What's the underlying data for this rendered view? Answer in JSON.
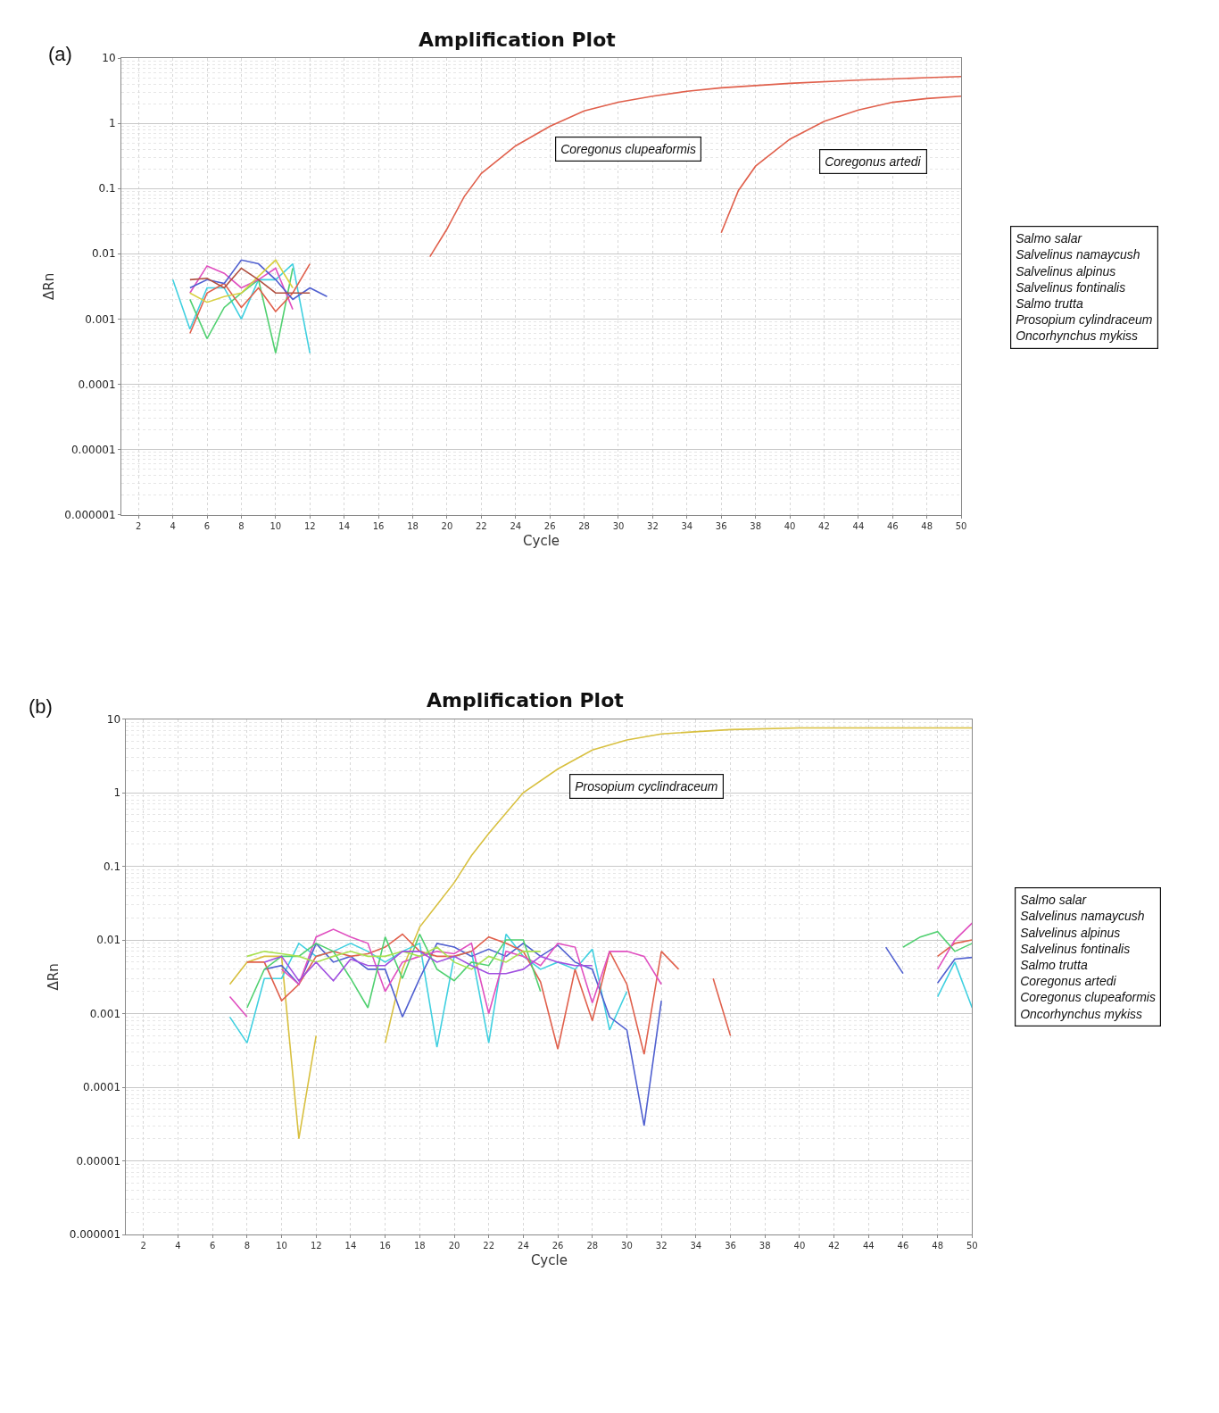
{
  "chart_data": [
    {
      "type": "line",
      "title": "Amplification Plot",
      "xlabel": "Cycle",
      "ylabel": "ΔRn",
      "log": "y",
      "grid": true,
      "marker": "none",
      "line_style": "solid",
      "xlim": [
        1,
        50
      ],
      "xticks": [
        2,
        4,
        6,
        8,
        10,
        12,
        14,
        16,
        18,
        20,
        22,
        24,
        26,
        28,
        30,
        32,
        34,
        36,
        38,
        40,
        42,
        44,
        46,
        48,
        50
      ],
      "ylim": [
        1e-06,
        10
      ],
      "yticks": [
        {
          "value": 1e-06,
          "label": "0.000001"
        },
        {
          "value": 1e-05,
          "label": "0.00001"
        },
        {
          "value": 0.0001,
          "label": "0.0001"
        },
        {
          "value": 0.001,
          "label": "0.001"
        },
        {
          "value": 0.01,
          "label": "0.01"
        },
        {
          "value": 0.1,
          "label": "0.1"
        },
        1,
        10
      ],
      "annotations": [
        "(a)",
        "Coregonus clupeaformis",
        "Coregonus artedi",
        "Salmo salar\nSalvelinus namaycush\nSalvelinus alpinus\nSalvelinus fontinalis\nSalmo trutta\nProsopium cylindraceum\nOncorhynchus mykiss"
      ],
      "series": [
        {
          "color": "#e0604c",
          "x": [
            19,
            20,
            21,
            22,
            24,
            26,
            28,
            30,
            32,
            34,
            36,
            40,
            44,
            48,
            50
          ],
          "values": [
            0.009,
            0.024,
            0.075,
            0.17,
            0.45,
            0.9,
            1.55,
            2.1,
            2.6,
            3.1,
            3.5,
            4.1,
            4.6,
            5.0,
            5.2
          ]
        },
        {
          "color": "#e0604c",
          "x": [
            36,
            37,
            38,
            40,
            42,
            44,
            46,
            48,
            50
          ],
          "values": [
            0.021,
            0.093,
            0.22,
            0.57,
            1.07,
            1.6,
            2.1,
            2.4,
            2.6
          ]
        },
        {
          "color": "#40d0e0",
          "x": [
            4,
            5,
            6,
            7,
            8,
            9,
            10,
            11,
            12
          ],
          "values": [
            0.004,
            0.0007,
            0.003,
            0.003,
            0.001,
            0.004,
            0.004,
            0.007,
            0.0003
          ]
        },
        {
          "color": "#50d070",
          "x": [
            5,
            6,
            7,
            8,
            9,
            10,
            11
          ],
          "values": [
            0.002,
            0.0005,
            0.0015,
            0.0025,
            0.004,
            0.0003,
            0.006
          ]
        },
        {
          "color": "#e050c0",
          "x": [
            5,
            6,
            7,
            8,
            9,
            10,
            11
          ],
          "values": [
            0.0025,
            0.0065,
            0.005,
            0.003,
            0.004,
            0.006,
            0.0014
          ]
        },
        {
          "color": "#e0604c",
          "x": [
            5,
            6,
            7,
            8,
            9,
            10,
            11,
            12
          ],
          "values": [
            0.0006,
            0.0025,
            0.0035,
            0.0015,
            0.003,
            0.0013,
            0.0025,
            0.007
          ]
        },
        {
          "color": "#5060d0",
          "x": [
            5,
            6,
            7,
            8,
            9,
            10,
            11,
            12,
            13
          ],
          "values": [
            0.003,
            0.004,
            0.0035,
            0.008,
            0.007,
            0.004,
            0.002,
            0.003,
            0.0022
          ]
        },
        {
          "color": "#d8d040",
          "x": [
            5,
            6,
            7,
            8,
            9,
            10,
            11
          ],
          "values": [
            0.0025,
            0.0018,
            0.0022,
            0.0025,
            0.0045,
            0.008,
            0.003
          ]
        },
        {
          "color": "#b05040",
          "x": [
            5,
            6,
            7,
            8,
            9,
            10,
            11,
            12
          ],
          "values": [
            0.004,
            0.0042,
            0.003,
            0.006,
            0.004,
            0.0025,
            0.0025,
            0.0025
          ]
        }
      ]
    },
    {
      "type": "line",
      "title": "Amplification Plot",
      "xlabel": "Cycle",
      "ylabel": "ΔRn",
      "log": "y",
      "grid": true,
      "marker": "none",
      "line_style": "solid",
      "xlim": [
        1,
        50
      ],
      "xticks": [
        2,
        4,
        6,
        8,
        10,
        12,
        14,
        16,
        18,
        20,
        22,
        24,
        26,
        28,
        30,
        32,
        34,
        36,
        38,
        40,
        42,
        44,
        46,
        48,
        50
      ],
      "ylim": [
        1e-06,
        10
      ],
      "yticks": [
        {
          "value": 1e-06,
          "label": "0.000001"
        },
        {
          "value": 1e-05,
          "label": "0.00001"
        },
        {
          "value": 0.0001,
          "label": "0.0001"
        },
        {
          "value": 0.001,
          "label": "0.001"
        },
        {
          "value": 0.01,
          "label": "0.01"
        },
        {
          "value": 0.1,
          "label": "0.1"
        },
        1,
        10
      ],
      "annotations": [
        "(b)",
        "Prosopium cyclindraceum",
        "Salmo salar\nSalvelinus namaycush\nSalvelinus alpinus\nSalvelinus fontinalis\nSalmo trutta\nCoregonus artedi\nCoregonus clupeaformis\nOncorhynchus mykiss"
      ],
      "series": [
        {
          "color": "#d8c040",
          "x": [
            7,
            8,
            9,
            10,
            11,
            12,
            13,
            14,
            15,
            16,
            17,
            18,
            19,
            20,
            21,
            22,
            24,
            26,
            28,
            30,
            32,
            36,
            40,
            50
          ],
          "values": [
            0.0025,
            0.005,
            0.006,
            0.006,
            2e-05,
            0.0005,
            null,
            null,
            null,
            0.0004,
            0.004,
            0.015,
            0.03,
            0.06,
            0.14,
            0.28,
            1.0,
            2.1,
            3.8,
            5.2,
            6.3,
            7.2,
            7.6,
            7.6
          ]
        },
        {
          "color": "#40d0e0",
          "x": [
            7,
            8,
            9,
            10,
            11,
            12,
            13,
            14,
            15,
            16,
            17,
            18,
            19,
            20,
            21,
            22,
            23,
            24,
            25,
            26,
            27,
            28,
            29,
            30,
            31,
            32,
            33,
            34,
            35,
            36,
            37,
            38,
            39,
            40,
            41,
            42,
            43,
            44,
            45,
            46,
            47,
            48,
            49,
            50
          ],
          "values": [
            0.0009,
            0.0004,
            0.003,
            0.003,
            0.009,
            0.006,
            0.007,
            0.009,
            0.007,
            0.005,
            0.007,
            0.009,
            0.00035,
            0.006,
            0.007,
            0.0004,
            0.012,
            0.006,
            0.004,
            0.005,
            0.004,
            0.0075,
            0.0006,
            0.002,
            null,
            null,
            null,
            null,
            null,
            null,
            null,
            null,
            null,
            null,
            null,
            null,
            null,
            null,
            null,
            null,
            null,
            0.0017,
            0.005,
            0.0012
          ]
        },
        {
          "color": "#5060d0",
          "x": [
            9,
            10,
            11,
            12,
            13,
            14,
            15,
            16,
            17,
            18,
            19,
            20,
            21,
            22,
            23,
            24,
            25,
            26,
            27,
            28,
            29,
            30,
            31,
            32,
            33,
            34,
            35,
            36,
            37,
            38,
            39,
            40,
            41,
            42,
            43,
            44,
            45,
            46,
            47,
            48,
            49,
            50
          ],
          "values": [
            0.004,
            0.0045,
            0.0025,
            0.009,
            0.005,
            0.006,
            0.004,
            0.004,
            0.0009,
            0.003,
            0.009,
            0.008,
            0.006,
            0.0075,
            0.006,
            0.009,
            0.006,
            0.0085,
            0.005,
            0.004,
            0.0009,
            0.0006,
            3e-05,
            0.0015,
            null,
            null,
            null,
            null,
            null,
            null,
            null,
            null,
            null,
            null,
            null,
            null,
            0.008,
            0.0035,
            null,
            0.0026,
            0.0055,
            0.0058
          ]
        },
        {
          "color": "#e0604c",
          "x": [
            8,
            9,
            10,
            11,
            12,
            13,
            14,
            15,
            16,
            17,
            18,
            19,
            20,
            21,
            22,
            23,
            24,
            25,
            26,
            27,
            28,
            29,
            30,
            31,
            32,
            33,
            34,
            35,
            36,
            37,
            38,
            39,
            40,
            41,
            42,
            43,
            44,
            45,
            46,
            47,
            48,
            49,
            50
          ],
          "values": [
            0.005,
            0.005,
            0.0015,
            0.0025,
            0.006,
            0.007,
            0.006,
            0.0065,
            0.008,
            0.012,
            0.007,
            0.006,
            0.006,
            0.007,
            0.011,
            0.009,
            0.007,
            0.0027,
            0.00033,
            0.004,
            0.0008,
            0.007,
            0.0025,
            0.00028,
            0.007,
            0.004,
            null,
            0.003,
            0.0005,
            null,
            null,
            null,
            null,
            null,
            null,
            null,
            null,
            null,
            null,
            null,
            0.006,
            0.009,
            0.01
          ]
        },
        {
          "color": "#e050c0",
          "x": [
            7,
            8,
            9,
            10,
            11,
            12,
            13,
            14,
            15,
            16,
            17,
            18,
            19,
            20,
            21,
            22,
            23,
            24,
            25,
            26,
            27,
            28,
            29,
            30,
            31,
            32,
            33,
            34,
            35,
            36,
            37,
            38,
            39,
            40,
            41,
            42,
            43,
            44,
            45,
            46,
            47,
            48,
            49,
            50
          ],
          "values": [
            0.0017,
            0.0009,
            null,
            0.004,
            0.0025,
            0.011,
            0.014,
            0.011,
            0.009,
            0.002,
            0.005,
            0.006,
            0.007,
            0.0065,
            0.009,
            0.001,
            0.007,
            0.006,
            0.0045,
            0.009,
            0.008,
            0.0014,
            0.007,
            0.007,
            0.006,
            0.0025,
            null,
            null,
            null,
            null,
            null,
            null,
            null,
            null,
            null,
            null,
            null,
            null,
            null,
            null,
            null,
            0.004,
            0.01,
            0.017
          ]
        },
        {
          "color": "#50d070",
          "x": [
            8,
            9,
            10,
            11,
            12,
            13,
            14,
            15,
            16,
            17,
            18,
            19,
            20,
            21,
            22,
            23,
            24,
            25,
            26,
            27,
            28,
            29,
            30,
            31,
            32,
            33,
            34,
            35,
            36,
            37,
            38,
            39,
            40,
            41,
            42,
            43,
            44,
            45,
            46,
            47,
            48,
            49,
            50
          ],
          "values": [
            0.0012,
            0.004,
            0.006,
            0.006,
            0.009,
            0.007,
            0.003,
            0.0012,
            0.011,
            0.003,
            0.012,
            0.004,
            0.0028,
            0.005,
            0.0045,
            0.01,
            0.01,
            0.002,
            null,
            null,
            null,
            null,
            null,
            null,
            null,
            null,
            null,
            null,
            null,
            null,
            null,
            null,
            null,
            null,
            null,
            null,
            null,
            null,
            0.008,
            0.011,
            0.013,
            0.007,
            0.009
          ]
        },
        {
          "color": "#a8e050",
          "x": [
            8,
            9,
            10,
            11,
            12,
            13,
            14,
            15,
            16,
            17,
            18,
            19,
            20,
            21,
            22,
            23,
            24,
            25
          ],
          "values": [
            0.006,
            0.007,
            0.0065,
            0.006,
            0.005,
            0.006,
            0.007,
            0.006,
            0.006,
            0.007,
            0.006,
            0.008,
            0.005,
            0.004,
            0.006,
            0.005,
            0.007,
            0.007
          ]
        },
        {
          "color": "#a050e0",
          "x": [
            9,
            10,
            11,
            12,
            13,
            14,
            15,
            16,
            17,
            18,
            19,
            20,
            21,
            22,
            23,
            24,
            25,
            26,
            27,
            28
          ],
          "values": [
            0.005,
            0.006,
            0.0028,
            0.005,
            0.0028,
            0.0055,
            0.0045,
            0.0045,
            0.007,
            0.007,
            0.005,
            0.006,
            0.0045,
            0.0035,
            0.0035,
            0.004,
            0.006,
            0.005,
            0.0045,
            0.0045
          ]
        }
      ]
    }
  ]
}
